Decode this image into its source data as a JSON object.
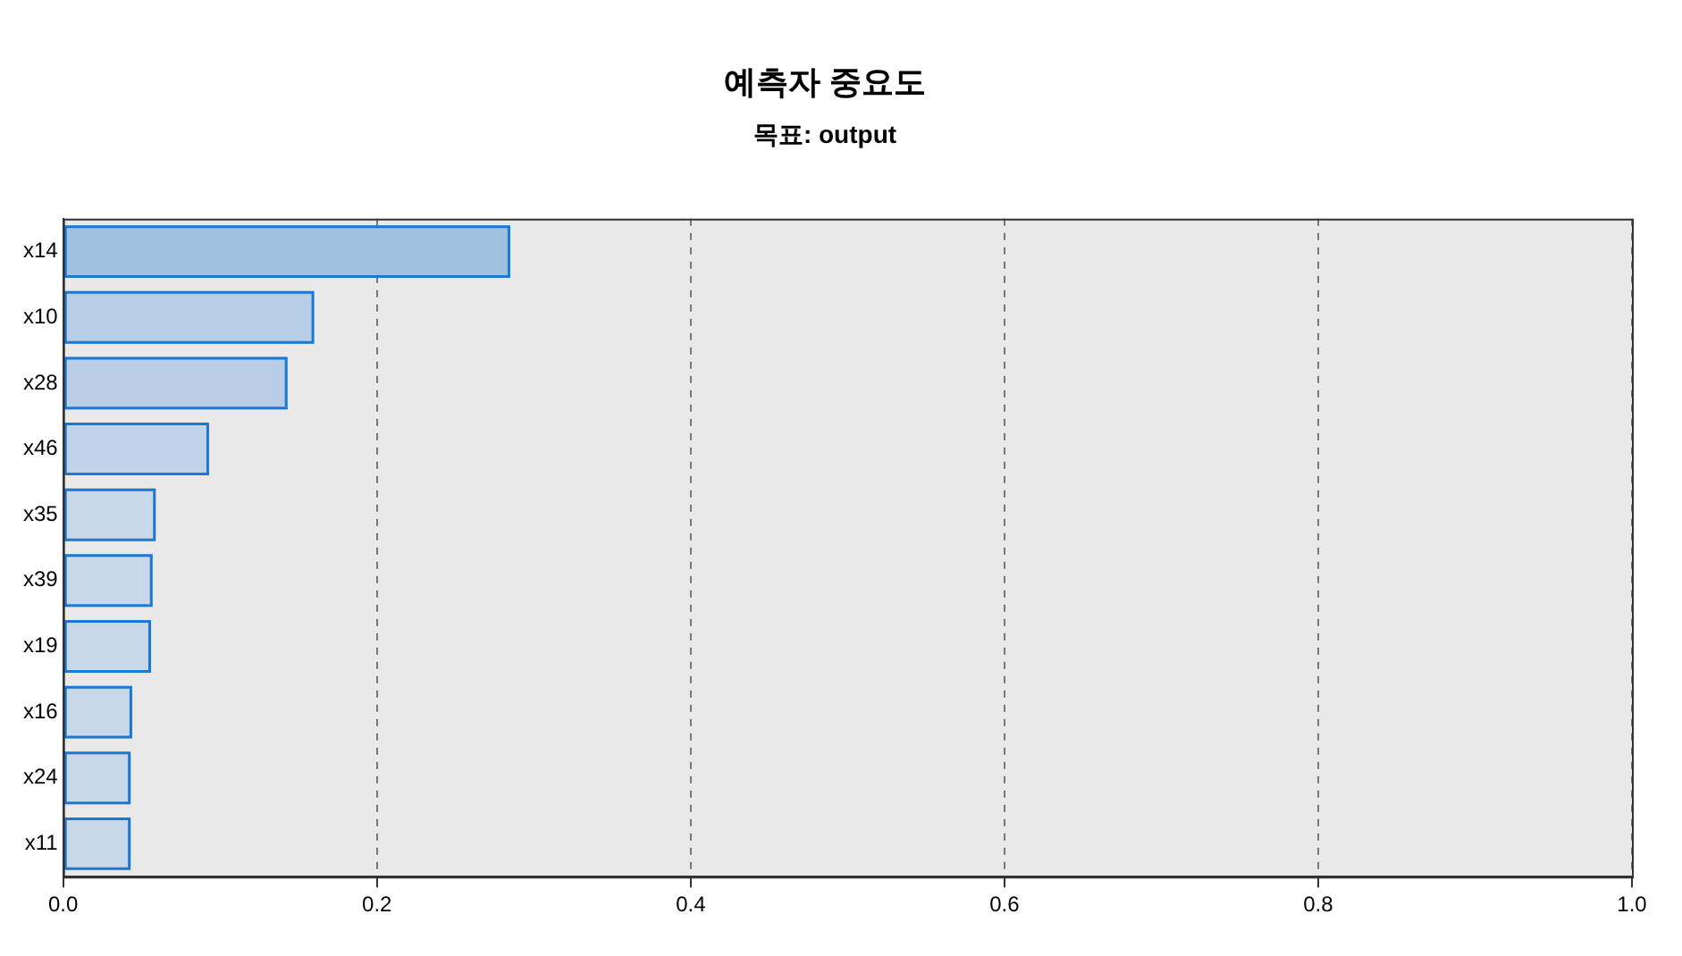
{
  "chart_data": {
    "type": "bar",
    "orientation": "horizontal",
    "title": "예측자 중요도",
    "subtitle": "목표: output",
    "categories": [
      "x14",
      "x10",
      "x28",
      "x46",
      "x35",
      "x39",
      "x19",
      "x16",
      "x24",
      "x11"
    ],
    "values": [
      0.285,
      0.16,
      0.143,
      0.093,
      0.059,
      0.057,
      0.056,
      0.044,
      0.043,
      0.043
    ],
    "colors": [
      "#a0c0e0",
      "#b8cee6",
      "#b9cee6",
      "#c0d3e8",
      "#c8d8e8",
      "#c8d8e8",
      "#c8d8e8",
      "#c8d8e8",
      "#c8d8e8",
      "#c8d8e8"
    ],
    "color": "#1a78d6",
    "xlim": [
      0,
      1
    ],
    "xticks": [
      {
        "value": 0,
        "label": "0.0"
      },
      {
        "value": 0.2,
        "label": "0.2"
      },
      {
        "value": 0.4,
        "label": "0.4"
      },
      {
        "value": 0.6,
        "label": "0.6"
      },
      {
        "value": 0.8,
        "label": "0.8"
      },
      {
        "value": 1,
        "label": "1.0"
      }
    ],
    "grid": "x",
    "legend": false
  }
}
